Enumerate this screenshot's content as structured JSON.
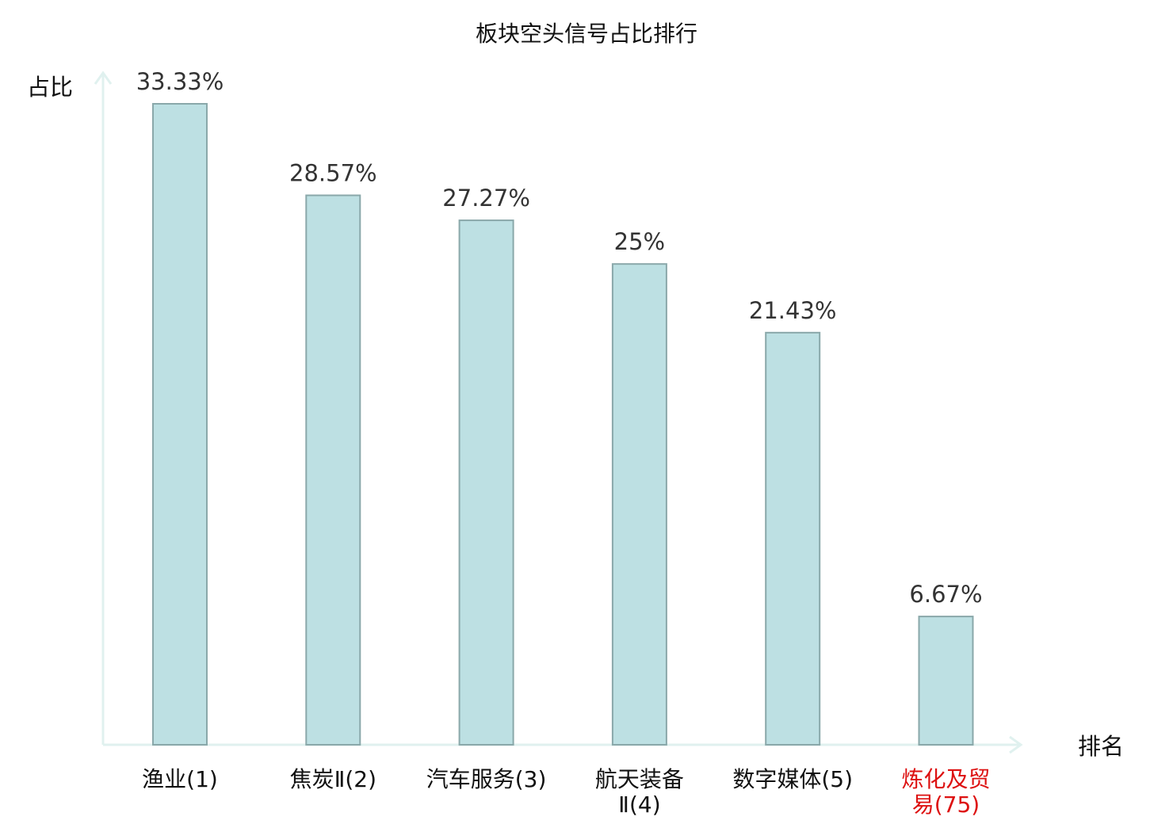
{
  "chart_data": {
    "type": "bar",
    "title": "板块空头信号占比排行",
    "ylabel": "占比",
    "xlabel": "排名",
    "ylim": [
      0,
      35
    ],
    "grid": false,
    "categories": [
      [
        "渔业(1)"
      ],
      [
        "焦炭Ⅱ(2)"
      ],
      [
        "汽车服务(3)"
      ],
      [
        "航天装备",
        "Ⅱ(4)"
      ],
      [
        "数字媒体(5)"
      ],
      [
        "炼化及贸",
        "易(75)"
      ]
    ],
    "values": [
      33.33,
      28.57,
      27.27,
      25,
      21.43,
      6.67
    ],
    "value_labels": [
      "33.33%",
      "28.57%",
      "27.27%",
      "25%",
      "21.43%",
      "6.67%"
    ],
    "highlight_index": 5,
    "colors": {
      "bar_fill": "#bde0e3",
      "bar_stroke": "#8aa8aa",
      "axis": "#e0f1ef",
      "label": "#111111",
      "highlight": "#dd1111"
    }
  }
}
